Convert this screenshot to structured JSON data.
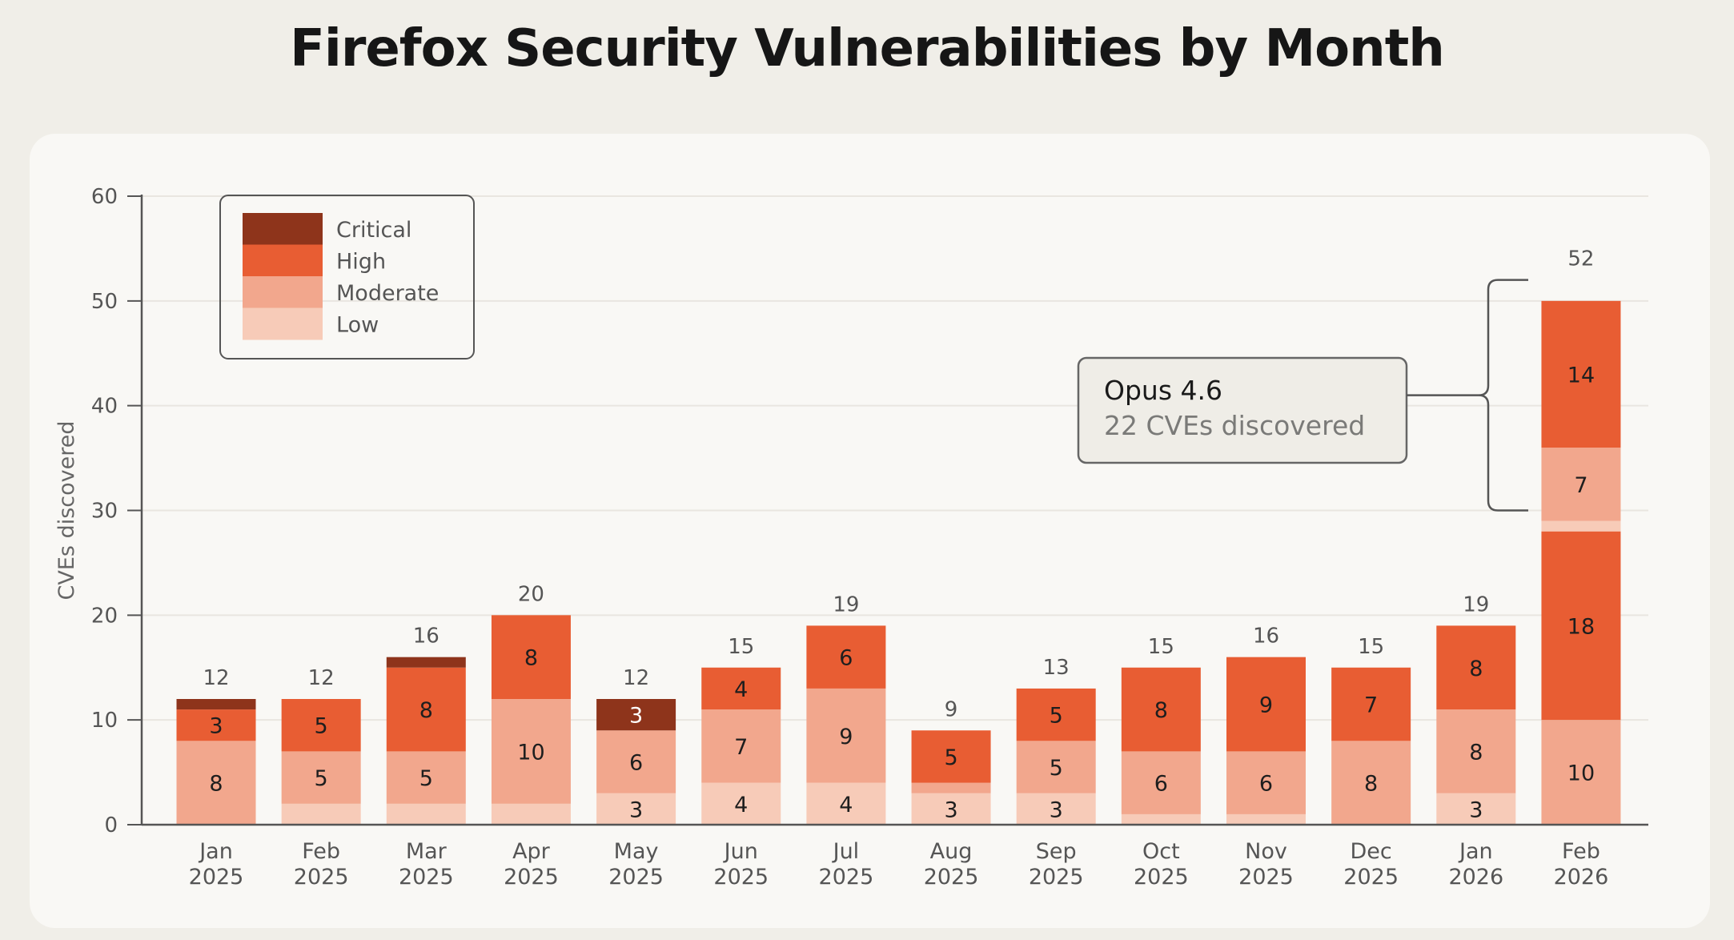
{
  "chart_data": {
    "type": "bar",
    "stacked": true,
    "title": "Firefox Security Vulnerabilities by Month",
    "ylabel": "CVEs discovered",
    "xlabel": "",
    "ylim": [
      0,
      60
    ],
    "yticks": [
      0,
      10,
      20,
      30,
      40,
      50,
      60
    ],
    "grid": true,
    "legend_position": "top-left",
    "categories": [
      [
        "Jan",
        "2025"
      ],
      [
        "Feb",
        "2025"
      ],
      [
        "Mar",
        "2025"
      ],
      [
        "Apr",
        "2025"
      ],
      [
        "May",
        "2025"
      ],
      [
        "Jun",
        "2025"
      ],
      [
        "Jul",
        "2025"
      ],
      [
        "Aug",
        "2025"
      ],
      [
        "Sep",
        "2025"
      ],
      [
        "Oct",
        "2025"
      ],
      [
        "Nov",
        "2025"
      ],
      [
        "Dec",
        "2025"
      ],
      [
        "Jan",
        "2026"
      ],
      [
        "Feb",
        "2026"
      ]
    ],
    "series": [
      {
        "name": "Low",
        "color": "#f7cbb8",
        "values": [
          0,
          2,
          2,
          2,
          3,
          4,
          4,
          3,
          3,
          1,
          1,
          0,
          3,
          3
        ],
        "labels": [
          null,
          null,
          null,
          null,
          "3",
          "4",
          "4",
          "3",
          "3",
          null,
          null,
          null,
          "3",
          null
        ]
      },
      {
        "name": "Moderate",
        "color": "#f2a78d",
        "values": [
          8,
          5,
          5,
          10,
          6,
          7,
          9,
          1,
          5,
          6,
          6,
          8,
          8,
          17
        ],
        "labels": [
          "8",
          "5",
          "5",
          "10",
          "6",
          "7",
          "9",
          null,
          "5",
          "6",
          "6",
          "8",
          "8",
          null
        ]
      },
      {
        "name": "High",
        "color": "#e85d33",
        "values": [
          3,
          5,
          8,
          8,
          0,
          4,
          6,
          5,
          5,
          8,
          9,
          7,
          8,
          32
        ],
        "labels": [
          "3",
          "5",
          "8",
          "8",
          null,
          "4",
          "6",
          "5",
          "5",
          "8",
          "9",
          "7",
          "8",
          null
        ]
      },
      {
        "name": "Critical",
        "color": "#8e341b",
        "values": [
          1,
          0,
          1,
          0,
          3,
          0,
          0,
          0,
          0,
          0,
          0,
          0,
          0,
          0
        ],
        "labels": [
          null,
          null,
          null,
          null,
          "3",
          null,
          null,
          null,
          null,
          null,
          null,
          null,
          null,
          null
        ]
      }
    ],
    "feb2026_segments": [
      {
        "series": "Moderate",
        "value": 10,
        "label": "10"
      },
      {
        "series": "High",
        "value": 18,
        "label": "18"
      },
      {
        "series": "Low",
        "value": 1,
        "label": null
      },
      {
        "series": "Moderate",
        "value": 7,
        "label": "7"
      },
      {
        "series": "High",
        "value": 14,
        "label": "14"
      }
    ],
    "totals": [
      12,
      12,
      16,
      20,
      12,
      15,
      19,
      9,
      13,
      15,
      16,
      15,
      19,
      52
    ],
    "annotation": {
      "title": "Opus 4.6",
      "text": "22 CVEs discovered",
      "bracket_range": [
        30,
        52
      ],
      "target_category": 13
    }
  }
}
